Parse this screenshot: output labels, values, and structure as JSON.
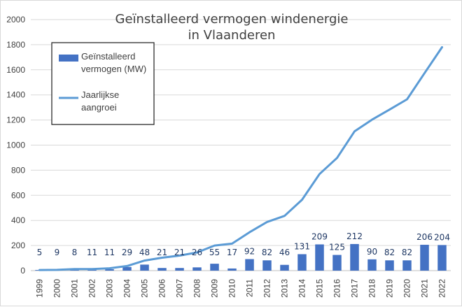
{
  "chart_data": {
    "type": "bar+line",
    "title_lines": [
      "Geïnstalleerd vermogen windenergie",
      "in Vlaanderen"
    ],
    "categories": [
      "1999",
      "2000",
      "2001",
      "2002",
      "2003",
      "2004",
      "2005",
      "2006",
      "2007",
      "2008",
      "2009",
      "2010",
      "2011",
      "2012",
      "2013",
      "2014",
      "2015",
      "2016",
      "2017",
      "2018",
      "2019",
      "2020",
      "2021",
      "2022"
    ],
    "series": [
      {
        "name": "Geïnstalleerd vermogen (MW)",
        "name_lines": [
          "Geïnstalleerd",
          "vermogen (MW)"
        ],
        "kind": "bar",
        "color": "#4472c4",
        "values": [
          5,
          9,
          8,
          11,
          11,
          29,
          48,
          21,
          21,
          26,
          55,
          17,
          92,
          82,
          46,
          131,
          209,
          125,
          212,
          90,
          82,
          82,
          206,
          204
        ]
      },
      {
        "name": "Jaarlijkse aangroei",
        "name_lines": [
          "Jaarlijkse",
          "aangroei"
        ],
        "kind": "line",
        "color": "#5b9bd5",
        "values": [
          5,
          6,
          13,
          13,
          19,
          37,
          80,
          103,
          120,
          145,
          200,
          215,
          306,
          388,
          436,
          565,
          770,
          898,
          1110,
          1203,
          1283,
          1365,
          1573,
          1780
        ]
      }
    ],
    "yticks": [
      "0",
      "200",
      "400",
      "600",
      "800",
      "1000",
      "1200",
      "1400",
      "1600",
      "1800",
      "2000"
    ],
    "ylim": [
      0,
      2000
    ],
    "grid": true,
    "legend": "top-left"
  }
}
